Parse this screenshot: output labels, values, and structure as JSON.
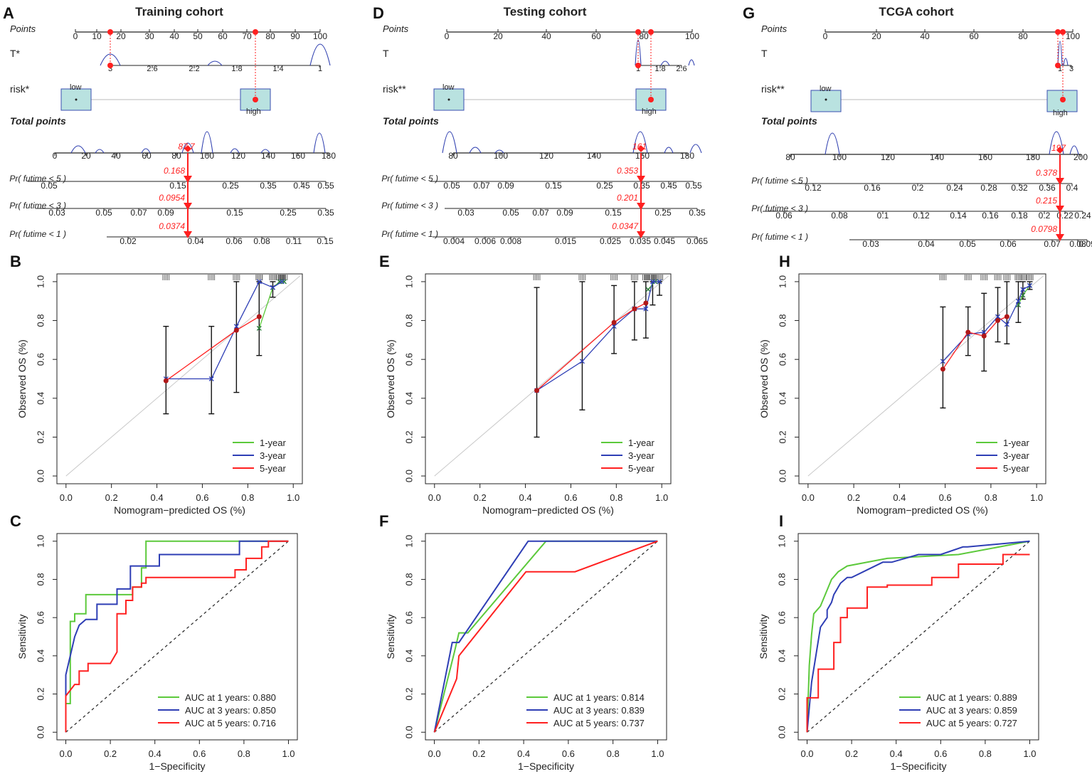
{
  "colors": {
    "green": "#5cc93b",
    "blue": "#2e3eb5",
    "red": "#ff2020",
    "navy": "#3040b0",
    "box": "#b9e2e0",
    "boxStroke": "#3a4fb0"
  },
  "panels": {
    "nomogram": [
      {
        "letter": "A",
        "title": "Training cohort",
        "t_label": "T*",
        "risk_label": "risk*",
        "points_ticks": [
          "0",
          "10",
          "20",
          "30",
          "40",
          "50",
          "60",
          "70",
          "80",
          "90",
          "100"
        ],
        "t_ticks": [
          "3",
          "2.6",
          "2.2",
          "1.8",
          "1.4",
          "1"
        ],
        "risk_low": "low",
        "risk_high": "high",
        "total_ticks": [
          "0",
          "20",
          "40",
          "60",
          "80",
          "100",
          "120",
          "140",
          "160",
          "180"
        ],
        "total_value": "87.7",
        "p5_label": "Pr( futime < 5 )",
        "p5_ticks": [
          "0.05",
          "0.15",
          "0.25",
          "0.35",
          "0.45",
          "0.55"
        ],
        "p5_value": "0.168",
        "p3_label": "Pr( futime < 3 )",
        "p3_ticks": [
          "0.03",
          "0.05",
          "0.07",
          "0.09",
          "0.15",
          "0.25",
          "0.35"
        ],
        "p3_value": "0.0954",
        "p1_label": "Pr( futime < 1 )",
        "p1_ticks": [
          "0.02",
          "0.04",
          "0.06",
          "0.08",
          "0.11",
          "0.15"
        ],
        "p1_value": "0.0374"
      },
      {
        "letter": "D",
        "title": "Testing cohort",
        "t_label": "T",
        "risk_label": "risk**",
        "points_ticks": [
          "0",
          "20",
          "40",
          "60",
          "80",
          "100"
        ],
        "t_ticks": [
          "1",
          "1.8",
          "2.6"
        ],
        "risk_low": "low",
        "risk_high": "high",
        "total_ticks": [
          "80",
          "100",
          "120",
          "140",
          "160",
          "180"
        ],
        "total_value": "161",
        "p5_label": "Pr( futime < 5 )",
        "p5_ticks": [
          "0.05",
          "0.07",
          "0.09",
          "0.15",
          "0.25",
          "0.35",
          "0.45",
          "0.55"
        ],
        "p5_value": "0.353",
        "p3_label": "Pr( futime < 3 )",
        "p3_ticks": [
          "0.03",
          "0.05",
          "0.07",
          "0.09",
          "0.15",
          "0.25",
          "0.35"
        ],
        "p3_value": "0.201",
        "p1_label": "Pr( futime < 1 )",
        "p1_ticks": [
          "0.004",
          "0.006",
          "0.008",
          "0.015",
          "0.025",
          "0.035",
          "0.045",
          "0.065"
        ],
        "p1_value": "0.0347"
      },
      {
        "letter": "G",
        "title": "TCGA cohort",
        "t_label": "T",
        "risk_label": "risk**",
        "points_ticks": [
          "0",
          "20",
          "40",
          "60",
          "80",
          "100"
        ],
        "t_ticks": [
          "1",
          "3"
        ],
        "risk_low": "low",
        "risk_high": "high",
        "total_ticks": [
          "80",
          "100",
          "120",
          "140",
          "160",
          "180",
          "200"
        ],
        "total_value": "197",
        "p5_label": "Pr( futime < 5 )",
        "p5_ticks": [
          "0.12",
          "0.16",
          "0.2",
          "0.24",
          "0.28",
          "0.32",
          "0.36",
          "0.4"
        ],
        "p5_value": "0.378",
        "p3_label": "Pr( futime < 3 )",
        "p3_ticks": [
          "0.06",
          "0.08",
          "0.1",
          "0.12",
          "0.14",
          "0.16",
          "0.18",
          "0.2",
          "0.22",
          "0.24"
        ],
        "p3_value": "0.215",
        "p1_label": "Pr( futime < 1 )",
        "p1_ticks": [
          "0.03",
          "0.04",
          "0.05",
          "0.06",
          "0.07",
          "0.08",
          "0.09"
        ],
        "p1_value": "0.0798"
      }
    ],
    "points_label": "Points",
    "total_label": "Total points"
  },
  "chart_data": [
    {
      "type": "line",
      "panel": "B",
      "title": "",
      "xlabel": "Nomogram−predicted OS (%)",
      "ylabel": "Observed OS (%)",
      "xlim": [
        0,
        1
      ],
      "ylim": [
        0,
        1
      ],
      "xticks": [
        "0.0",
        "0.2",
        "0.4",
        "0.6",
        "0.8",
        "1.0"
      ],
      "yticks": [
        "0.0",
        "0.2",
        "0.4",
        "0.6",
        "0.8",
        "1.0"
      ],
      "legend": [
        "1-year",
        "3-year",
        "5-year"
      ],
      "series": [
        {
          "name": "1-year",
          "x": [
            0.85,
            0.91,
            0.94,
            0.96
          ],
          "y": [
            0.76,
            0.97,
            1.0,
            1.0
          ]
        },
        {
          "name": "3-year",
          "x": [
            0.44,
            0.64,
            0.75,
            0.85,
            0.91,
            0.95
          ],
          "y": [
            0.5,
            0.5,
            0.77,
            1.0,
            0.97,
            1.0
          ]
        },
        {
          "name": "5-year",
          "x": [
            0.44,
            0.75,
            0.85
          ],
          "y": [
            0.49,
            0.75,
            0.82
          ]
        }
      ],
      "errorbars": [
        [
          0.44,
          0.32,
          0.77
        ],
        [
          0.64,
          0.32,
          0.77
        ],
        [
          0.75,
          0.43,
          1.0
        ],
        [
          0.85,
          0.62,
          1.0
        ],
        [
          0.91,
          0.92,
          1.0
        ]
      ]
    },
    {
      "type": "line",
      "panel": "E",
      "title": "",
      "xlabel": "Nomogram−predicted OS (%)",
      "ylabel": "Observed OS (%)",
      "xlim": [
        0,
        1
      ],
      "ylim": [
        0,
        1
      ],
      "xticks": [
        "0.0",
        "0.2",
        "0.4",
        "0.6",
        "0.8",
        "1.0"
      ],
      "yticks": [
        "0.0",
        "0.2",
        "0.4",
        "0.6",
        "0.8",
        "1.0"
      ],
      "legend": [
        "1-year",
        "3-year",
        "5-year"
      ],
      "series": [
        {
          "name": "1-year",
          "x": [
            0.94,
            0.97,
            0.99
          ],
          "y": [
            0.96,
            1.0,
            1.0
          ]
        },
        {
          "name": "3-year",
          "x": [
            0.45,
            0.65,
            0.79,
            0.88,
            0.93,
            0.96,
            0.99
          ],
          "y": [
            0.44,
            0.59,
            0.77,
            0.86,
            0.86,
            1.0,
            1.0
          ]
        },
        {
          "name": "5-year",
          "x": [
            0.45,
            0.79,
            0.88,
            0.93
          ],
          "y": [
            0.44,
            0.79,
            0.86,
            0.89
          ]
        }
      ],
      "errorbars": [
        [
          0.45,
          0.2,
          0.97
        ],
        [
          0.65,
          0.34,
          1.0
        ],
        [
          0.79,
          0.63,
          0.98
        ],
        [
          0.88,
          0.7,
          1.0
        ],
        [
          0.93,
          0.71,
          1.0
        ],
        [
          0.96,
          0.88,
          1.0
        ],
        [
          0.99,
          0.93,
          1.0
        ]
      ]
    },
    {
      "type": "line",
      "panel": "H",
      "title": "",
      "xlabel": "Nomogram−predicted OS (%)",
      "ylabel": "Observed OS (%)",
      "xlim": [
        0,
        1
      ],
      "ylim": [
        0,
        1
      ],
      "xticks": [
        "0.0",
        "0.2",
        "0.4",
        "0.6",
        "0.8",
        "1.0"
      ],
      "yticks": [
        "0.0",
        "0.2",
        "0.4",
        "0.6",
        "0.8",
        "1.0"
      ],
      "legend": [
        "1-year",
        "3-year",
        "5-year"
      ],
      "series": [
        {
          "name": "1-year",
          "x": [
            0.92,
            0.94,
            0.97
          ],
          "y": [
            0.88,
            0.93,
            0.98
          ]
        },
        {
          "name": "3-year",
          "x": [
            0.59,
            0.7,
            0.77,
            0.83,
            0.87,
            0.92,
            0.94,
            0.97
          ],
          "y": [
            0.59,
            0.73,
            0.74,
            0.82,
            0.78,
            0.9,
            0.96,
            0.98
          ]
        },
        {
          "name": "5-year",
          "x": [
            0.59,
            0.7,
            0.77,
            0.83,
            0.87
          ],
          "y": [
            0.55,
            0.74,
            0.72,
            0.8,
            0.82
          ]
        }
      ],
      "errorbars": [
        [
          0.59,
          0.35,
          0.87
        ],
        [
          0.7,
          0.62,
          0.87
        ],
        [
          0.77,
          0.54,
          0.94
        ],
        [
          0.83,
          0.69,
          0.97
        ],
        [
          0.87,
          0.68,
          1.0
        ],
        [
          0.92,
          0.79,
          1.0
        ],
        [
          0.94,
          0.91,
          1.0
        ],
        [
          0.97,
          0.96,
          1.0
        ]
      ]
    },
    {
      "type": "line",
      "panel": "C",
      "title": "",
      "xlabel": "1−Specificity",
      "ylabel": "Sensitivity",
      "xlim": [
        0,
        1
      ],
      "ylim": [
        0,
        1
      ],
      "xticks": [
        "0.0",
        "0.2",
        "0.4",
        "0.6",
        "0.8",
        "1.0"
      ],
      "yticks": [
        "0.0",
        "0.2",
        "0.4",
        "0.6",
        "0.8",
        "1.0"
      ],
      "legend": [
        "AUC at 1 years: 0.880",
        "AUC at 3 years: 0.850",
        "AUC at 5 years: 0.716"
      ],
      "series": [
        {
          "name": "AUC at 1 years: 0.880",
          "x": [
            0,
            0.02,
            0.02,
            0.04,
            0.04,
            0.09,
            0.09,
            0.3,
            0.3,
            0.34,
            0.34,
            0.36,
            0.36,
            1.0
          ],
          "y": [
            0.15,
            0.15,
            0.58,
            0.58,
            0.62,
            0.62,
            0.72,
            0.72,
            0.76,
            0.76,
            0.86,
            0.86,
            1.0,
            1.0
          ]
        },
        {
          "name": "AUC at 3 years: 0.850",
          "x": [
            0,
            0,
            0.02,
            0.04,
            0.06,
            0.09,
            0.14,
            0.14,
            0.23,
            0.23,
            0.29,
            0.29,
            0.36,
            0.36,
            0.42,
            0.42,
            0.78,
            0.78,
            1.0
          ],
          "y": [
            0,
            0.3,
            0.4,
            0.5,
            0.56,
            0.59,
            0.59,
            0.67,
            0.67,
            0.75,
            0.75,
            0.87,
            0.87,
            0.87,
            0.87,
            0.93,
            0.93,
            1.0,
            1.0
          ]
        },
        {
          "name": "AUC at 5 years: 0.716",
          "x": [
            0,
            0,
            0.02,
            0.04,
            0.06,
            0.06,
            0.1,
            0.1,
            0.2,
            0.23,
            0.23,
            0.27,
            0.27,
            0.3,
            0.3,
            0.34,
            0.34,
            0.36,
            0.36,
            0.76,
            0.76,
            0.81,
            0.81,
            0.88,
            0.88,
            0.91,
            0.91,
            1.0
          ],
          "y": [
            0,
            0.19,
            0.22,
            0.25,
            0.25,
            0.32,
            0.32,
            0.36,
            0.36,
            0.42,
            0.62,
            0.62,
            0.69,
            0.69,
            0.76,
            0.76,
            0.78,
            0.78,
            0.81,
            0.81,
            0.85,
            0.85,
            0.91,
            0.91,
            0.97,
            0.97,
            1.0,
            1.0
          ]
        }
      ]
    },
    {
      "type": "line",
      "panel": "F",
      "title": "",
      "xlabel": "1−Specificity",
      "ylabel": "Sensitivity",
      "xlim": [
        0,
        1
      ],
      "ylim": [
        0,
        1
      ],
      "xticks": [
        "0.0",
        "0.2",
        "0.4",
        "0.6",
        "0.8",
        "1.0"
      ],
      "yticks": [
        "0.0",
        "0.2",
        "0.4",
        "0.6",
        "0.8",
        "1.0"
      ],
      "legend": [
        "AUC at 1 years: 0.814",
        "AUC at 3 years: 0.839",
        "AUC at 5 years: 0.737"
      ],
      "series": [
        {
          "name": "AUC at 1 years: 0.814",
          "x": [
            0,
            0.09,
            0.11,
            0.15,
            0.5,
            1.0
          ],
          "y": [
            0,
            0.42,
            0.52,
            0.52,
            1.0,
            1.0
          ]
        },
        {
          "name": "AUC at 3 years: 0.839",
          "x": [
            0,
            0.08,
            0.11,
            0.42,
            1.0
          ],
          "y": [
            0,
            0.47,
            0.47,
            1.0,
            1.0
          ]
        },
        {
          "name": "AUC at 5 years: 0.737",
          "x": [
            0,
            0.1,
            0.11,
            0.41,
            0.63,
            1.0
          ],
          "y": [
            0,
            0.28,
            0.4,
            0.84,
            0.84,
            1.0
          ]
        }
      ]
    },
    {
      "type": "line",
      "panel": "I",
      "title": "",
      "xlabel": "1−Specificity",
      "ylabel": "Sensitivity",
      "xlim": [
        0,
        1
      ],
      "ylim": [
        0,
        1
      ],
      "xticks": [
        "0.0",
        "0.2",
        "0.4",
        "0.6",
        "0.8",
        "1.0"
      ],
      "yticks": [
        "0.0",
        "0.2",
        "0.4",
        "0.6",
        "0.8",
        "1.0"
      ],
      "legend": [
        "AUC at 1 years: 0.889",
        "AUC at 3 years: 0.859",
        "AUC at 5 years: 0.727"
      ],
      "series": [
        {
          "name": "AUC at 1 years: 0.889",
          "x": [
            0,
            0.01,
            0.01,
            0.02,
            0.02,
            0.03,
            0.03,
            0.06,
            0.06,
            0.11,
            0.11,
            0.14,
            0.14,
            0.18,
            0.18,
            0.36,
            0.36,
            0.68,
            0.68,
            1.0
          ],
          "y": [
            0,
            0.35,
            0.35,
            0.51,
            0.51,
            0.62,
            0.62,
            0.66,
            0.66,
            0.8,
            0.8,
            0.84,
            0.84,
            0.87,
            0.87,
            0.91,
            0.91,
            0.93,
            0.93,
            1.0
          ],
          "step": true
        },
        {
          "name": "AUC at 3 years: 0.859",
          "x": [
            0,
            0.02,
            0.02,
            0.06,
            0.06,
            0.09,
            0.09,
            0.11,
            0.12,
            0.13,
            0.15,
            0.18,
            0.2,
            0.34,
            0.38,
            0.5,
            0.6,
            0.7,
            0.72,
            1.0
          ],
          "y": [
            0,
            0.26,
            0.26,
            0.55,
            0.55,
            0.6,
            0.64,
            0.68,
            0.72,
            0.74,
            0.78,
            0.81,
            0.81,
            0.89,
            0.89,
            0.93,
            0.93,
            0.97,
            0.97,
            1.0
          ],
          "step": true
        },
        {
          "name": "AUC at 5 years: 0.727",
          "x": [
            0,
            0,
            0.05,
            0.05,
            0.12,
            0.12,
            0.15,
            0.15,
            0.18,
            0.18,
            0.27,
            0.27,
            0.36,
            0.36,
            0.56,
            0.56,
            0.68,
            0.68,
            0.88,
            0.88,
            1.0
          ],
          "y": [
            0,
            0.18,
            0.18,
            0.33,
            0.33,
            0.47,
            0.47,
            0.6,
            0.6,
            0.65,
            0.65,
            0.76,
            0.76,
            0.77,
            0.77,
            0.81,
            0.81,
            0.88,
            0.88,
            0.93,
            0.93
          ],
          "step": true
        }
      ]
    }
  ]
}
